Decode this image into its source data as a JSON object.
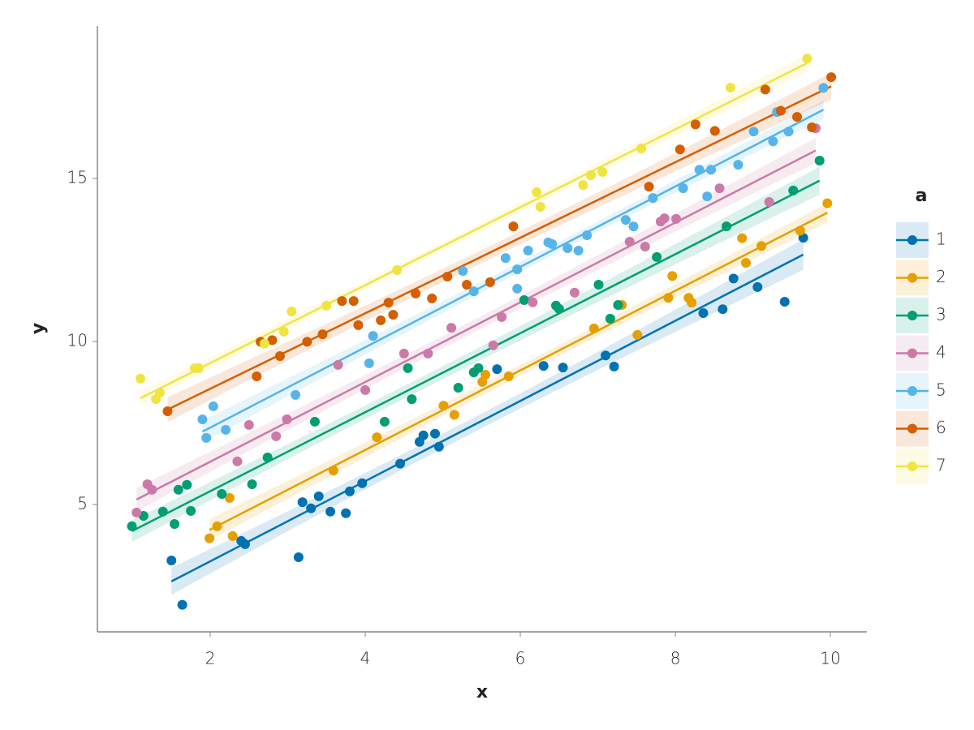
{
  "chart_data": {
    "type": "scatter",
    "x_label": "x",
    "y_label": "y",
    "legend_title": "a",
    "xlim": [
      0.545,
      10.47
    ],
    "ylim": [
      1.09,
      19.68
    ],
    "xticks": [
      2,
      4,
      6,
      8,
      10
    ],
    "yticks": [
      5,
      10,
      15
    ],
    "fit": "linear",
    "legend": "right",
    "series": [
      {
        "name": "1",
        "color": "#0072B2",
        "x": [
          1.5,
          1.64,
          2.4,
          2.45,
          3.14,
          3.19,
          3.3,
          3.4,
          3.55,
          3.75,
          3.8,
          3.96,
          4.45,
          4.7,
          4.75,
          4.9,
          4.95,
          5.7,
          6.3,
          6.55,
          7.1,
          7.21,
          8.36,
          8.61,
          8.75,
          9.06,
          9.41,
          9.65
        ],
        "values": [
          3.28,
          1.92,
          3.88,
          3.78,
          3.38,
          5.07,
          4.88,
          5.25,
          4.78,
          4.73,
          5.4,
          5.65,
          6.25,
          6.92,
          7.12,
          7.17,
          6.77,
          9.15,
          9.25,
          9.2,
          9.57,
          9.23,
          10.87,
          10.99,
          11.93,
          11.67,
          11.22,
          13.18
        ]
      },
      {
        "name": "2",
        "color": "#E69F00",
        "x": [
          1.99,
          2.09,
          2.25,
          2.29,
          3.59,
          4.15,
          5.01,
          5.15,
          5.51,
          5.55,
          5.85,
          6.95,
          7.31,
          7.51,
          7.91,
          7.96,
          8.17,
          8.21,
          8.86,
          8.91,
          9.11,
          9.61,
          9.96
        ],
        "values": [
          3.96,
          4.33,
          5.2,
          4.03,
          6.04,
          7.06,
          8.03,
          7.75,
          8.76,
          8.98,
          8.93,
          10.4,
          11.12,
          10.2,
          11.34,
          12.01,
          11.34,
          11.19,
          13.17,
          12.41,
          12.93,
          13.4,
          14.24
        ]
      },
      {
        "name": "3",
        "color": "#009E73",
        "x": [
          0.99,
          1.14,
          1.39,
          1.54,
          1.59,
          1.7,
          1.75,
          2.15,
          2.54,
          2.74,
          3.35,
          4.25,
          4.55,
          4.6,
          5.2,
          5.4,
          5.46,
          6.05,
          6.46,
          6.5,
          7.01,
          7.16,
          7.26,
          7.76,
          8.66,
          9.52,
          9.86
        ],
        "values": [
          4.33,
          4.65,
          4.78,
          4.4,
          5.45,
          5.6,
          4.8,
          5.32,
          5.62,
          6.44,
          7.54,
          7.54,
          9.18,
          8.23,
          8.58,
          9.05,
          9.18,
          11.27,
          11.1,
          11.0,
          11.74,
          10.7,
          11.12,
          12.59,
          13.53,
          14.63,
          15.55
        ]
      },
      {
        "name": "4",
        "color": "#CC79A7",
        "x": [
          1.05,
          1.19,
          1.25,
          2.35,
          2.5,
          2.85,
          2.99,
          3.65,
          4.0,
          4.5,
          4.81,
          5.11,
          5.65,
          5.76,
          6.16,
          6.7,
          7.41,
          7.61,
          7.81,
          7.86,
          8.01,
          8.57,
          9.21,
          9.81
        ],
        "values": [
          4.75,
          5.62,
          5.45,
          6.32,
          7.44,
          7.09,
          7.61,
          9.28,
          8.51,
          9.63,
          9.63,
          10.42,
          9.88,
          10.75,
          11.2,
          11.5,
          13.06,
          12.91,
          13.68,
          13.78,
          13.76,
          14.7,
          14.28,
          16.54
        ]
      },
      {
        "name": "5",
        "color": "#56B4E9",
        "x": [
          1.9,
          1.95,
          2.04,
          2.2,
          3.1,
          4.05,
          4.1,
          5.26,
          5.4,
          5.81,
          5.96,
          5.96,
          6.1,
          6.36,
          6.41,
          6.61,
          6.75,
          6.86,
          7.36,
          7.46,
          7.71,
          8.1,
          8.31,
          8.41,
          8.46,
          8.81,
          9.01,
          9.26,
          9.31,
          9.46,
          9.91
        ],
        "values": [
          7.61,
          7.04,
          8.01,
          7.29,
          8.36,
          9.33,
          10.17,
          12.16,
          11.54,
          12.56,
          11.62,
          12.21,
          12.79,
          13.04,
          12.99,
          12.86,
          12.79,
          13.26,
          13.73,
          13.53,
          14.4,
          14.7,
          15.27,
          14.45,
          15.27,
          15.42,
          16.44,
          16.14,
          17.04,
          16.44,
          17.78
        ]
      },
      {
        "name": "6",
        "color": "#D55E00",
        "x": [
          1.45,
          2.6,
          2.65,
          2.8,
          2.9,
          3.25,
          3.45,
          3.7,
          3.85,
          3.91,
          4.2,
          4.3,
          4.36,
          4.65,
          4.86,
          5.06,
          5.31,
          5.61,
          5.91,
          7.66,
          8.06,
          8.26,
          8.51,
          9.16,
          9.36,
          9.57,
          9.76,
          10.01
        ],
        "values": [
          7.86,
          8.93,
          9.99,
          10.04,
          9.55,
          9.99,
          10.22,
          11.24,
          11.24,
          10.5,
          10.65,
          11.19,
          10.82,
          11.47,
          11.32,
          11.99,
          11.74,
          11.82,
          13.53,
          14.75,
          15.89,
          16.66,
          16.46,
          17.73,
          17.08,
          16.89,
          16.57,
          18.11
        ]
      },
      {
        "name": "7",
        "color": "#F0E442",
        "x": [
          1.1,
          1.3,
          1.35,
          1.8,
          1.85,
          2.7,
          2.95,
          3.05,
          3.5,
          4.41,
          6.21,
          6.26,
          6.81,
          6.91,
          7.06,
          7.56,
          8.71,
          9.7
        ],
        "values": [
          8.86,
          8.23,
          8.43,
          9.18,
          9.18,
          9.93,
          10.3,
          10.92,
          11.1,
          12.19,
          14.58,
          14.13,
          14.8,
          15.1,
          15.2,
          15.92,
          17.79,
          18.68
        ]
      }
    ]
  }
}
